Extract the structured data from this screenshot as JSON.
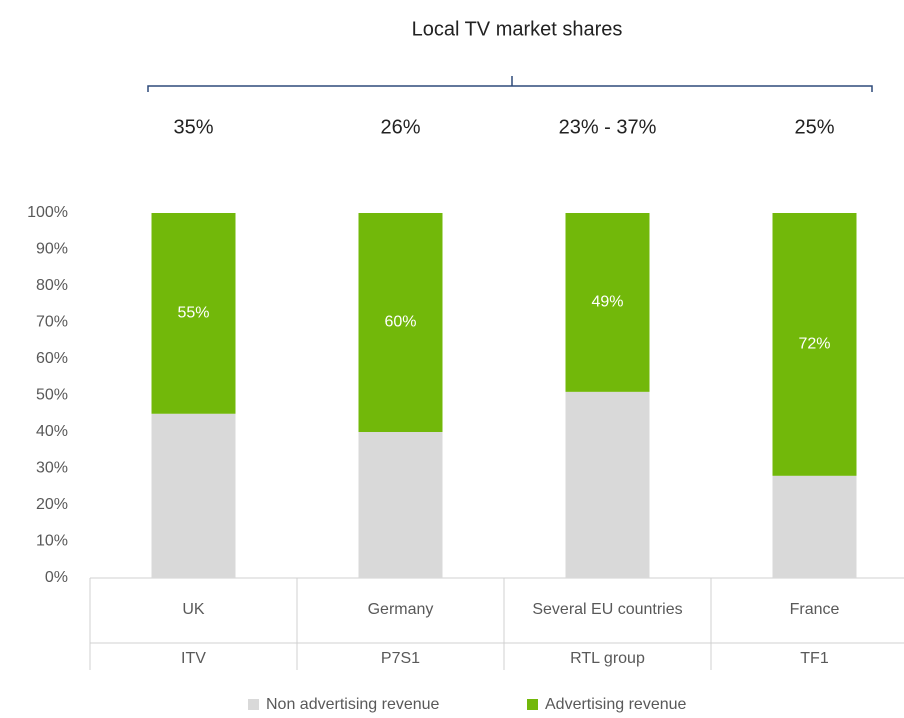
{
  "chart_data": {
    "type": "stacked_bar",
    "title": "Local TV market shares",
    "market_shares": [
      "35%",
      "26%",
      "23% - 37%",
      "25%"
    ],
    "categories": [
      "UK",
      "Germany",
      "Several EU countries",
      "France"
    ],
    "subcategories": [
      "ITV",
      "P7S1",
      "RTL group",
      "TF1"
    ],
    "series": [
      {
        "name": "Non advertising revenue",
        "color": "#d9d9d9",
        "values": [
          45,
          40,
          51,
          28
        ]
      },
      {
        "name": "Advertising revenue",
        "color": "#72b80a",
        "values": [
          55,
          60,
          49,
          72
        ],
        "value_labels": [
          "55%",
          "60%",
          "49%",
          "72%"
        ]
      }
    ],
    "ylim": [
      0,
      100
    ],
    "yticks": [
      {
        "value": 0,
        "label": "0%"
      },
      {
        "value": 10,
        "label": "10%"
      },
      {
        "value": 20,
        "label": "20%"
      },
      {
        "value": 30,
        "label": "30%"
      },
      {
        "value": 40,
        "label": "40%"
      },
      {
        "value": 50,
        "label": "50%"
      },
      {
        "value": 60,
        "label": "60%"
      },
      {
        "value": 70,
        "label": "70%"
      },
      {
        "value": 80,
        "label": "80%"
      },
      {
        "value": 90,
        "label": "90%"
      },
      {
        "value": 100,
        "label": "100%"
      }
    ],
    "legend": "bottom"
  }
}
